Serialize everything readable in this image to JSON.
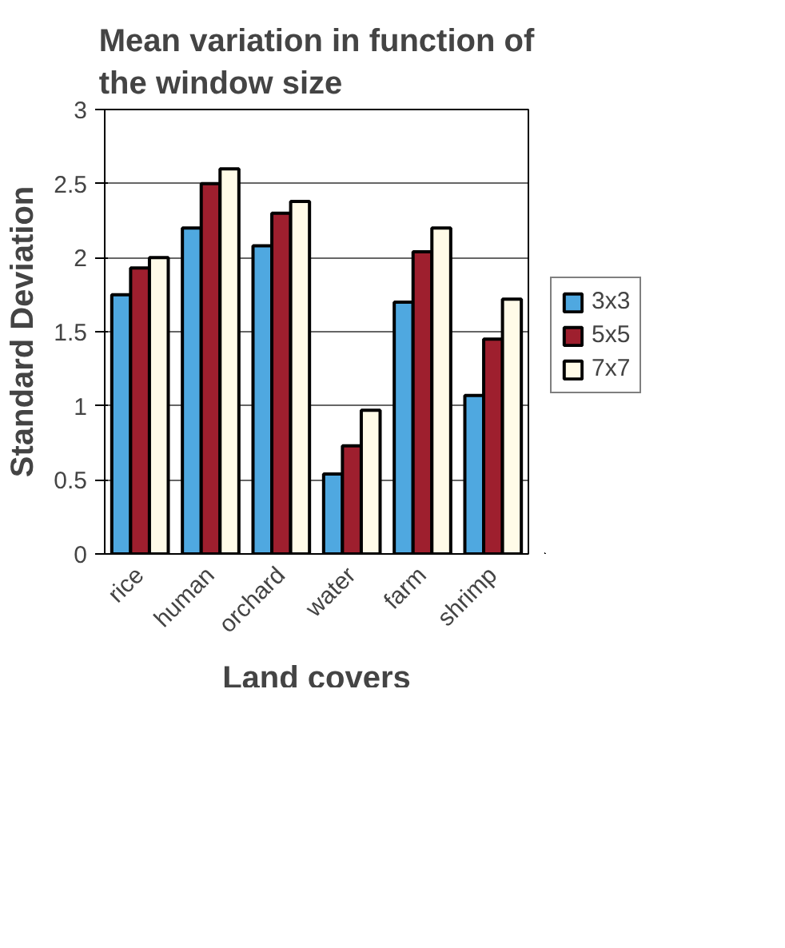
{
  "chart_data": {
    "type": "bar",
    "title": "Mean variation in function of the window size",
    "xlabel": "Land covers",
    "ylabel": "Standard Deviation",
    "categories": [
      "rice",
      "human",
      "orchard",
      "water",
      "farm",
      "shrimp"
    ],
    "series": [
      {
        "name": "3x3",
        "color": "#4fa8e0",
        "values": [
          1.75,
          2.2,
          2.08,
          0.54,
          1.7,
          1.07
        ]
      },
      {
        "name": "5x5",
        "color": "#9e1f2e",
        "values": [
          1.93,
          2.5,
          2.3,
          0.73,
          2.04,
          1.45
        ]
      },
      {
        "name": "7x7",
        "color": "#fffbe8",
        "values": [
          2.0,
          2.6,
          2.38,
          0.97,
          2.2,
          1.72
        ]
      }
    ],
    "ylim": [
      0,
      3
    ],
    "yticks": [
      0,
      0.5,
      1,
      1.5,
      2,
      2.5,
      3
    ],
    "grid": "y",
    "legend": "right"
  }
}
